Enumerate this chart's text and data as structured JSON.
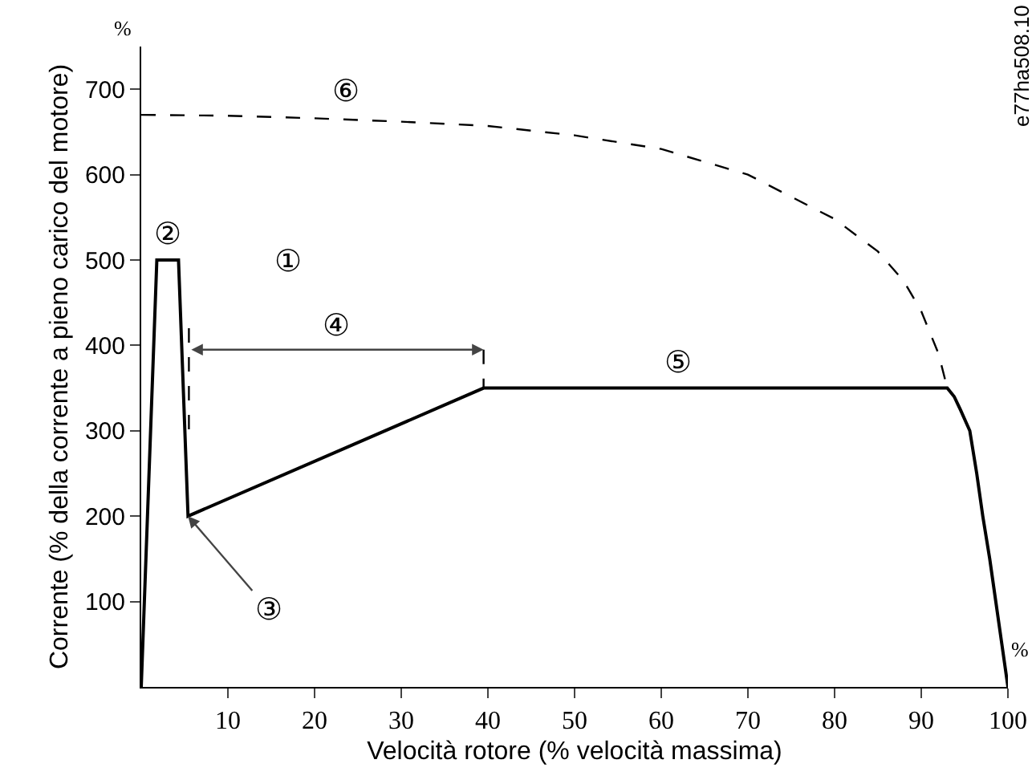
{
  "chart_data": {
    "type": "line",
    "xlabel": "Velocità rotore (% velocità massima)",
    "ylabel": "Corrente (% della corrente a pieno carico del motore)",
    "xlim": [
      0,
      100
    ],
    "ylim": [
      0,
      750
    ],
    "xticks": [
      10,
      20,
      30,
      40,
      50,
      60,
      70,
      80,
      90,
      100
    ],
    "yticks": [
      100,
      200,
      300,
      400,
      500,
      600,
      700
    ],
    "grid": false,
    "marker": "none",
    "series": [
      {
        "color": "#000000",
        "line_style": "solid",
        "x": [
          0,
          1.8,
          4.3,
          5.4,
          39.5,
          93,
          93.8,
          94.5,
          95.6,
          96.4,
          97.1,
          97.9,
          98.6,
          99.3,
          100
        ],
        "values": [
          0,
          500,
          500,
          200,
          350,
          350,
          340,
          325,
          300,
          250,
          200,
          150,
          100,
          50,
          0
        ]
      },
      {
        "color": "#000000",
        "line_style": "dashed",
        "x": [
          0,
          10,
          20,
          30,
          40,
          50,
          60,
          70,
          80,
          85,
          88,
          90,
          92,
          93
        ],
        "values": [
          670,
          669,
          666,
          662,
          657,
          646,
          630,
          600,
          548,
          510,
          475,
          440,
          390,
          350
        ]
      },
      {
        "color": "#000000",
        "line_style": "dashed",
        "x": [
          5.5,
          5.5
        ],
        "values": [
          420,
          295
        ]
      },
      {
        "color": "#000000",
        "line_style": "dashed",
        "x": [
          39.5,
          39.5
        ],
        "values": [
          395,
          350
        ]
      }
    ],
    "annotations": [
      "①",
      "②",
      {
        "text": "③",
        "x": 5.4,
        "y": 200
      },
      "④",
      "⑤",
      "⑥",
      "%",
      "%",
      "e77ha508.10"
    ]
  }
}
